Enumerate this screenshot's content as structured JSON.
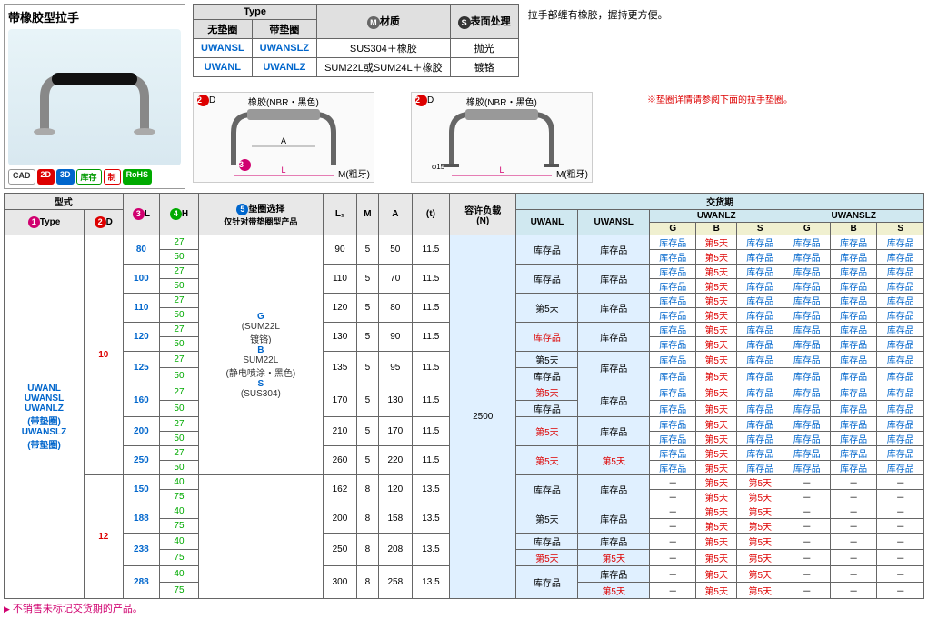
{
  "title": "带橡胶型拉手",
  "badges": {
    "cad": "CAD",
    "d2": "2D",
    "d3": "3D",
    "stock": "库存",
    "make": "制",
    "rohs": "RoHS"
  },
  "note_top": "拉手部缠有橡胶，握持更方便。",
  "footnote_right": "※垫圈详情请参阅下面的拉手垫圈。",
  "type_hdr": {
    "type": "Type",
    "nopad": "无垫圈",
    "pad": "带垫圈",
    "mat": "材质",
    "surf": "表面处理",
    "m_icon": "M",
    "s_icon": "S"
  },
  "type_rows": [
    {
      "a": "UWANSL",
      "b": "UWANSLZ",
      "mat": "SUS304＋橡胶",
      "surf": "抛光"
    },
    {
      "a": "UWANL",
      "b": "UWANLZ",
      "mat": "SUM22L或SUM24L＋橡胶",
      "surf": "镀铬"
    }
  ],
  "diag_labels": {
    "rubber": "橡胶(NBR・黑色)",
    "mthread": "M(粗牙)"
  },
  "main_hdr": {
    "model": "型式",
    "type": "Type",
    "d": "D",
    "l": "L",
    "h": "H",
    "washer": "垫圈选择",
    "washer_sub": "仅针对带垫圈型产品",
    "l1": "L₁",
    "m": "M",
    "a": "A",
    "t": "(t)",
    "load": "容许负载",
    "load_unit": "(N)",
    "delivery": "交货期",
    "del_cols": [
      "UWANL",
      "UWANSL",
      "UWANLZ",
      "UWANSLZ"
    ],
    "gbs": [
      "G",
      "B",
      "S"
    ]
  },
  "washer_opts": {
    "g": "G",
    "g_sub": "(SUM22L",
    "g_sub2": "镀铬)",
    "b": "B",
    "b_sub": "SUM22L",
    "b_sub2": "(静电喷涂・黑色)",
    "s": "S",
    "s_sub": "(SUS304)"
  },
  "type_names": [
    "UWANL",
    "UWANSL",
    "UWANLZ",
    "(带垫圈)",
    "UWANSLZ",
    "(带垫圈)"
  ],
  "d_vals": [
    "10",
    "12"
  ],
  "load_val": "2500",
  "rows_d10": [
    {
      "l": "80",
      "h": [
        "27",
        "50"
      ],
      "l1": "90",
      "m": "5",
      "a": "50",
      "t": "11.5",
      "d1": "库存品",
      "d2": "库存品"
    },
    {
      "l": "100",
      "h": [
        "27",
        "50"
      ],
      "l1": "110",
      "m": "5",
      "a": "70",
      "t": "11.5",
      "d1": "库存品",
      "d2": "库存品"
    },
    {
      "l": "110",
      "h": [
        "27",
        "50"
      ],
      "l1": "120",
      "m": "5",
      "a": "80",
      "t": "11.5",
      "d1": "第5天",
      "d2": "库存品"
    },
    {
      "l": "120",
      "h": [
        "27",
        "50"
      ],
      "l1": "130",
      "m": "5",
      "a": "90",
      "t": "11.5",
      "d1": "库存品",
      "d2": "库存品",
      "d1red": true
    },
    {
      "l": "125",
      "h": [
        "27",
        "50"
      ],
      "l1": "135",
      "m": "5",
      "a": "95",
      "t": "11.5",
      "d1a": "第5天",
      "d1b": "库存品",
      "d2": "库存品"
    },
    {
      "l": "160",
      "h": [
        "27",
        "50"
      ],
      "l1": "170",
      "m": "5",
      "a": "130",
      "t": "11.5",
      "d1a": "第5天",
      "d1b": "库存品",
      "d2": "库存品",
      "d1ared": true
    },
    {
      "l": "200",
      "h": [
        "27",
        "50"
      ],
      "l1": "210",
      "m": "5",
      "a": "170",
      "t": "11.5",
      "d1": "第5天",
      "d2": "库存品",
      "d1red": true
    },
    {
      "l": "250",
      "h": [
        "27",
        "50"
      ],
      "l1": "260",
      "m": "5",
      "a": "220",
      "t": "11.5",
      "d1": "第5天",
      "d2": "第5天",
      "d1red": true,
      "d2red": true
    }
  ],
  "rows_d12": [
    {
      "l": "150",
      "h": [
        "40",
        "75"
      ],
      "l1": "162",
      "m": "8",
      "a": "120",
      "t": "13.5",
      "d1": "库存品",
      "d2": "库存品"
    },
    {
      "l": "188",
      "h": [
        "40",
        "75"
      ],
      "l1": "200",
      "m": "8",
      "a": "158",
      "t": "13.5",
      "d1": "第5天",
      "d2": "库存品"
    },
    {
      "l": "238",
      "h": [
        "40",
        "75"
      ],
      "l1": "250",
      "m": "8",
      "a": "208",
      "t": "13.5",
      "d1a": "库存品",
      "d1b": "第5天",
      "d2a": "库存品",
      "d2b": "第5天",
      "d1bred": true,
      "d2bred": true
    },
    {
      "l": "288",
      "h": [
        "40",
        "75"
      ],
      "l1": "300",
      "m": "8",
      "a": "258",
      "t": "13.5",
      "d1": "库存品",
      "d2a": "库存品",
      "d2b": "第5天",
      "d2bred": true
    }
  ],
  "tiny_cells": {
    "stock": "库存品",
    "d5": "第5天",
    "d5red": "第5天",
    "dash": "－"
  },
  "footnote": "不销售未标记交货期的产品。",
  "colors": {
    "blue": "#0066cc",
    "red": "#dd0000",
    "green": "#00aa00",
    "pink": "#d0006f",
    "hdr_bg": "#e8e8e8",
    "blue_bg": "#e0f0ff"
  }
}
